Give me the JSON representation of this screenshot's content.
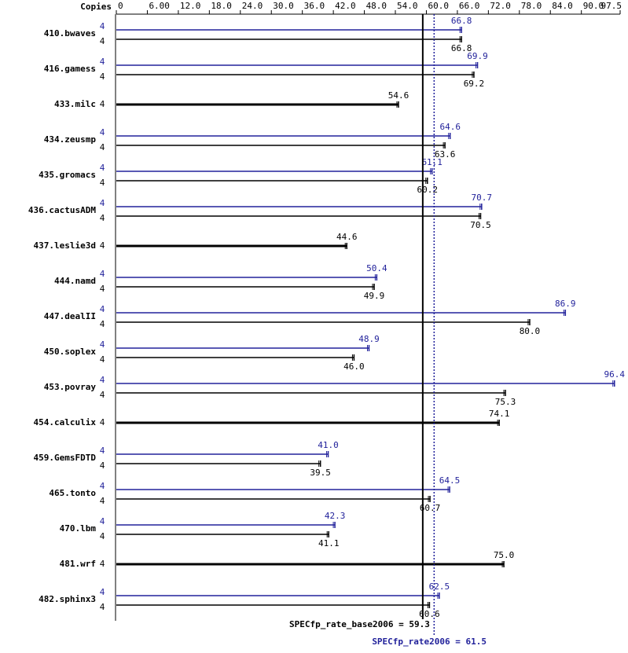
{
  "chart_data": {
    "type": "spec-bar",
    "copies_label": "Copies",
    "categories": [
      "410.bwaves",
      "416.gamess",
      "433.milc",
      "434.zeusmp",
      "435.gromacs",
      "436.cactusADM",
      "437.leslie3d",
      "444.namd",
      "447.dealII",
      "450.soplex",
      "453.povray",
      "454.calculix",
      "459.GemsFDTD",
      "465.tonto",
      "470.lbm",
      "481.wrf",
      "482.sphinx3"
    ],
    "series": [
      {
        "color": "#22229b",
        "copies": [
          4,
          4,
          null,
          4,
          4,
          4,
          null,
          4,
          4,
          4,
          4,
          null,
          4,
          4,
          4,
          null,
          4
        ],
        "values": [
          66.8,
          69.9,
          null,
          64.6,
          61.1,
          70.7,
          null,
          50.4,
          86.9,
          48.9,
          96.4,
          null,
          41.0,
          64.5,
          42.3,
          null,
          62.5
        ],
        "value_labels": [
          "66.8",
          "69.9",
          null,
          "64.6",
          "61.1",
          "70.7",
          null,
          "50.4",
          "86.9",
          "48.9",
          "96.4",
          null,
          "41.0",
          "64.5",
          "42.3",
          null,
          "62.5"
        ]
      },
      {
        "color": "#000000",
        "copies": [
          4,
          4,
          4,
          4,
          4,
          4,
          4,
          4,
          4,
          4,
          4,
          4,
          4,
          4,
          4,
          4,
          4
        ],
        "values": [
          66.8,
          69.2,
          54.6,
          63.6,
          60.2,
          70.5,
          44.6,
          49.9,
          80.0,
          46.0,
          75.3,
          74.1,
          39.5,
          60.7,
          41.1,
          75.0,
          60.6
        ],
        "value_labels": [
          "66.8",
          "69.2",
          "54.6",
          "63.6",
          "60.2",
          "70.5",
          "44.6",
          "49.9",
          "80.0",
          "46.0",
          "75.3",
          "74.1",
          "39.5",
          "60.7",
          "41.1",
          "75.0",
          "60.6"
        ]
      }
    ],
    "xlim": [
      0,
      97.5
    ],
    "xticks": [
      0,
      {
        "value": 6,
        "label": "6.00"
      },
      {
        "value": 12,
        "label": "12.0"
      },
      {
        "value": 18,
        "label": "18.0"
      },
      {
        "value": 24,
        "label": "24.0"
      },
      {
        "value": 30,
        "label": "30.0"
      },
      {
        "value": 36,
        "label": "36.0"
      },
      {
        "value": 42,
        "label": "42.0"
      },
      {
        "value": 48,
        "label": "48.0"
      },
      {
        "value": 54,
        "label": "54.0"
      },
      {
        "value": 60,
        "label": "60.0"
      },
      {
        "value": 66,
        "label": "66.0"
      },
      {
        "value": 72,
        "label": "72.0"
      },
      {
        "value": 78,
        "label": "78.0"
      },
      {
        "value": 84,
        "label": "84.0"
      },
      {
        "value": 90,
        "label": "90.0"
      },
      97.5
    ],
    "base_ref": {
      "value": 59.3,
      "label": "SPECfp_rate_base2006 = 59.3"
    },
    "peak_ref": {
      "value": 61.5,
      "label": "SPECfp_rate2006 = 61.5"
    }
  }
}
